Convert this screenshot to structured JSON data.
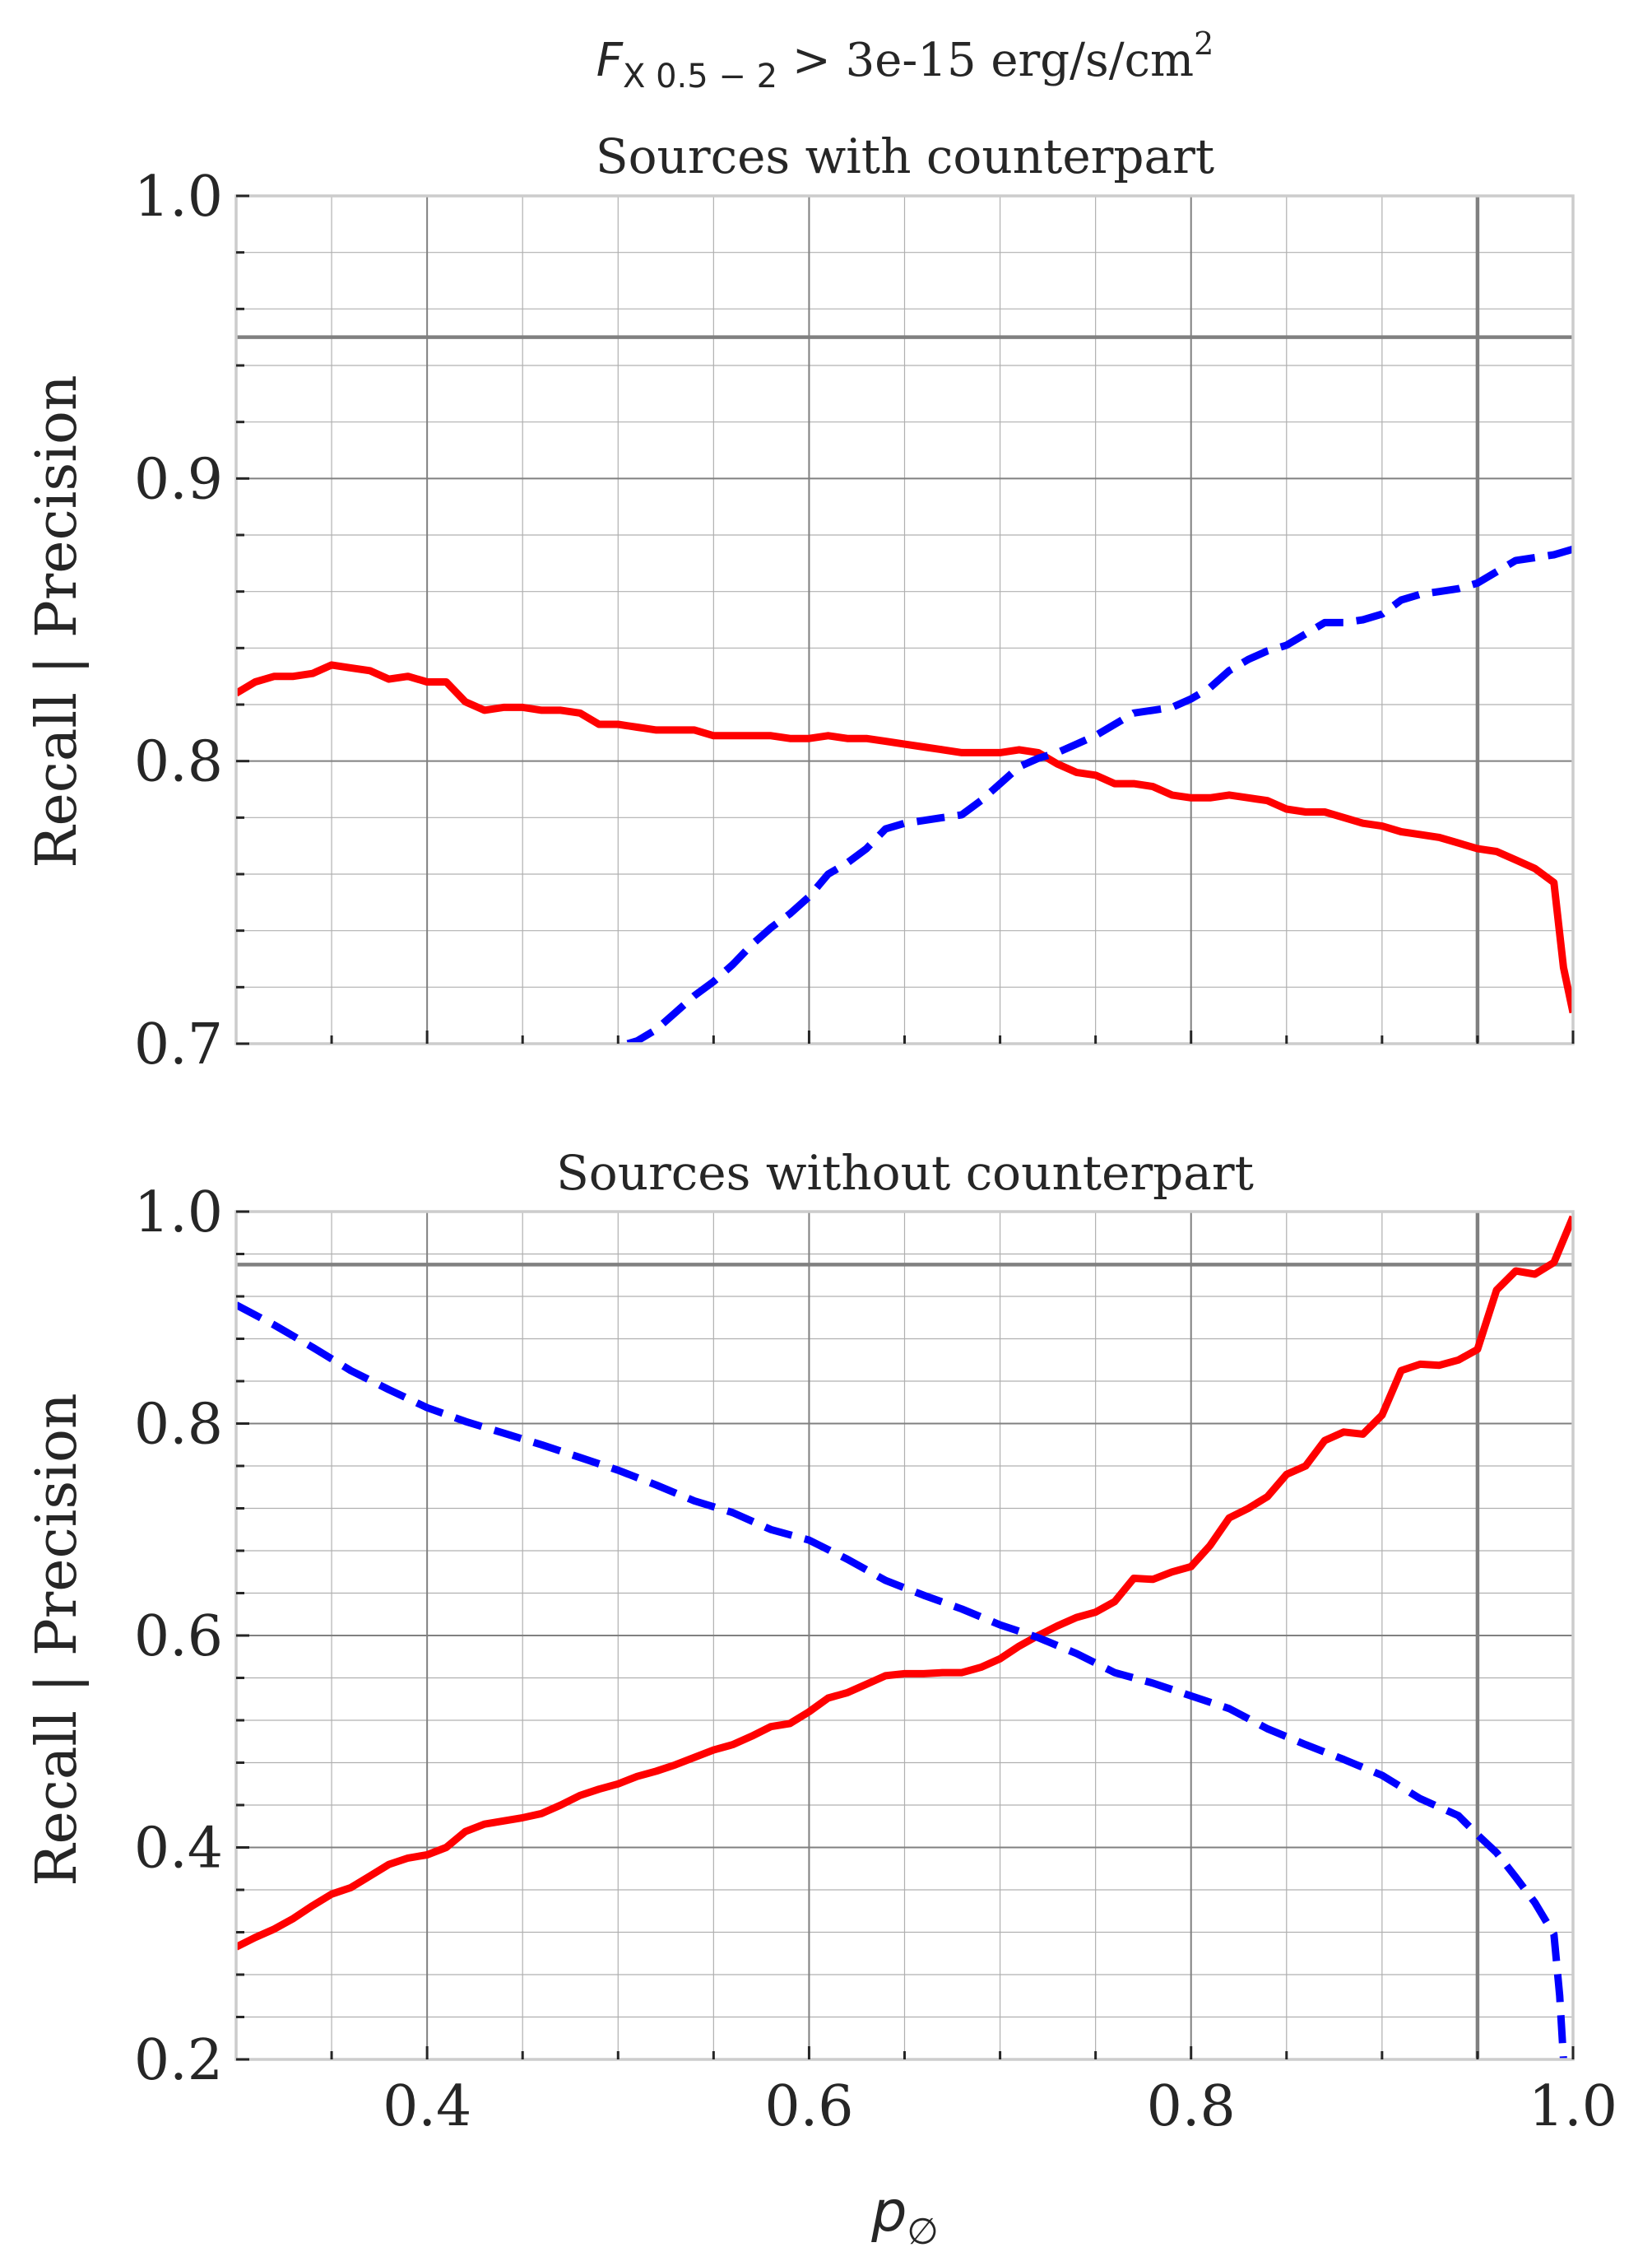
{
  "figure": {
    "suptitle": {
      "base": "F",
      "sub": "X 0.5 − 2",
      "rest": " > 3e-15 erg/s/cm",
      "sup": "2"
    },
    "xlabel": {
      "base": "p",
      "sub": "∅"
    }
  },
  "chart_data": [
    {
      "type": "line",
      "title": "Sources with counterpart",
      "ylabel": "Recall | Precision",
      "xlabel": "",
      "xlim": [
        0.3,
        1.0
      ],
      "ylim": [
        0.7,
        1.0
      ],
      "xticks": [
        "0.4",
        "0.6",
        "0.8",
        "1.0"
      ],
      "show_xtick_labels": false,
      "yticks": [
        "0.7",
        "0.8",
        "0.9",
        "1.0"
      ],
      "ytick_values": [
        0.7,
        0.8,
        0.9,
        1.0
      ],
      "grid": true,
      "reference_lines": {
        "horizontal": 0.95,
        "vertical": 0.95,
        "color": "#808080"
      },
      "series": [
        {
          "color": "#ff0000",
          "style": "solid",
          "x": [
            0.3,
            0.31,
            0.32,
            0.33,
            0.34,
            0.35,
            0.36,
            0.37,
            0.38,
            0.39,
            0.4,
            0.41,
            0.42,
            0.43,
            0.44,
            0.45,
            0.46,
            0.47,
            0.48,
            0.49,
            0.5,
            0.51,
            0.52,
            0.53,
            0.54,
            0.55,
            0.56,
            0.57,
            0.58,
            0.59,
            0.6,
            0.61,
            0.62,
            0.63,
            0.64,
            0.65,
            0.66,
            0.67,
            0.68,
            0.69,
            0.7,
            0.71,
            0.72,
            0.73,
            0.74,
            0.75,
            0.76,
            0.77,
            0.78,
            0.79,
            0.8,
            0.81,
            0.82,
            0.83,
            0.84,
            0.85,
            0.86,
            0.87,
            0.88,
            0.89,
            0.9,
            0.91,
            0.92,
            0.93,
            0.94,
            0.95,
            0.96,
            0.97,
            0.98,
            0.99,
            0.995,
            1.0
          ],
          "y": [
            0.824,
            0.828,
            0.83,
            0.83,
            0.831,
            0.834,
            0.833,
            0.832,
            0.829,
            0.83,
            0.828,
            0.828,
            0.821,
            0.818,
            0.819,
            0.819,
            0.818,
            0.818,
            0.817,
            0.813,
            0.813,
            0.812,
            0.811,
            0.811,
            0.811,
            0.809,
            0.809,
            0.809,
            0.809,
            0.808,
            0.808,
            0.809,
            0.808,
            0.808,
            0.807,
            0.806,
            0.805,
            0.804,
            0.803,
            0.803,
            0.803,
            0.804,
            0.803,
            0.799,
            0.796,
            0.795,
            0.792,
            0.792,
            0.791,
            0.788,
            0.787,
            0.787,
            0.788,
            0.787,
            0.786,
            0.783,
            0.782,
            0.782,
            0.78,
            0.778,
            0.777,
            0.775,
            0.774,
            0.773,
            0.771,
            0.769,
            0.768,
            0.765,
            0.762,
            0.757,
            0.727,
            0.711
          ]
        },
        {
          "color": "#0000ff",
          "style": "dashed",
          "x": [
            0.505,
            0.51,
            0.52,
            0.53,
            0.54,
            0.55,
            0.56,
            0.57,
            0.58,
            0.59,
            0.6,
            0.61,
            0.62,
            0.63,
            0.64,
            0.65,
            0.66,
            0.67,
            0.68,
            0.69,
            0.7,
            0.71,
            0.72,
            0.73,
            0.74,
            0.75,
            0.76,
            0.77,
            0.78,
            0.79,
            0.8,
            0.81,
            0.82,
            0.83,
            0.84,
            0.85,
            0.86,
            0.87,
            0.88,
            0.89,
            0.9,
            0.91,
            0.92,
            0.93,
            0.94,
            0.95,
            0.96,
            0.97,
            0.98,
            0.99,
            1.0
          ],
          "y": [
            0.7,
            0.701,
            0.705,
            0.711,
            0.717,
            0.722,
            0.728,
            0.735,
            0.741,
            0.746,
            0.752,
            0.76,
            0.764,
            0.769,
            0.776,
            0.778,
            0.779,
            0.78,
            0.781,
            0.786,
            0.792,
            0.798,
            0.801,
            0.803,
            0.806,
            0.809,
            0.813,
            0.817,
            0.818,
            0.819,
            0.822,
            0.826,
            0.832,
            0.836,
            0.839,
            0.841,
            0.845,
            0.849,
            0.849,
            0.85,
            0.852,
            0.857,
            0.859,
            0.86,
            0.861,
            0.863,
            0.867,
            0.871,
            0.872,
            0.873,
            0.875
          ]
        }
      ]
    },
    {
      "type": "line",
      "title": "Sources without counterpart",
      "ylabel": "Recall | Precision",
      "xlabel": "",
      "xlim": [
        0.3,
        1.0
      ],
      "ylim": [
        0.2,
        1.0
      ],
      "xticks": [
        "0.4",
        "0.6",
        "0.8",
        "1.0"
      ],
      "show_xtick_labels": true,
      "yticks": [
        "0.2",
        "0.4",
        "0.6",
        "0.8",
        "1.0"
      ],
      "ytick_values": [
        0.2,
        0.4,
        0.6,
        0.8,
        1.0
      ],
      "grid": true,
      "reference_lines": {
        "horizontal": 0.95,
        "vertical": 0.95,
        "color": "#808080"
      },
      "series": [
        {
          "color": "#ff0000",
          "style": "solid",
          "x": [
            0.3,
            0.31,
            0.32,
            0.33,
            0.34,
            0.35,
            0.36,
            0.37,
            0.38,
            0.39,
            0.4,
            0.41,
            0.42,
            0.43,
            0.44,
            0.45,
            0.46,
            0.47,
            0.48,
            0.49,
            0.5,
            0.51,
            0.52,
            0.53,
            0.54,
            0.55,
            0.56,
            0.57,
            0.58,
            0.59,
            0.6,
            0.61,
            0.62,
            0.63,
            0.64,
            0.65,
            0.66,
            0.67,
            0.68,
            0.69,
            0.7,
            0.71,
            0.72,
            0.73,
            0.74,
            0.75,
            0.76,
            0.77,
            0.78,
            0.79,
            0.8,
            0.81,
            0.82,
            0.83,
            0.84,
            0.85,
            0.86,
            0.87,
            0.88,
            0.89,
            0.9,
            0.91,
            0.92,
            0.93,
            0.94,
            0.95,
            0.96,
            0.97,
            0.98,
            0.99,
            1.0
          ],
          "y": [
            0.306,
            0.315,
            0.323,
            0.333,
            0.345,
            0.356,
            0.362,
            0.373,
            0.384,
            0.39,
            0.393,
            0.4,
            0.415,
            0.422,
            0.425,
            0.428,
            0.432,
            0.44,
            0.449,
            0.455,
            0.46,
            0.467,
            0.472,
            0.478,
            0.485,
            0.492,
            0.497,
            0.505,
            0.514,
            0.517,
            0.528,
            0.541,
            0.546,
            0.554,
            0.562,
            0.564,
            0.564,
            0.565,
            0.565,
            0.57,
            0.578,
            0.59,
            0.6,
            0.609,
            0.617,
            0.622,
            0.632,
            0.654,
            0.653,
            0.66,
            0.665,
            0.685,
            0.711,
            0.72,
            0.731,
            0.752,
            0.76,
            0.784,
            0.792,
            0.79,
            0.808,
            0.85,
            0.856,
            0.855,
            0.86,
            0.87,
            0.926,
            0.944,
            0.941,
            0.952,
            0.995
          ]
        },
        {
          "color": "#0000ff",
          "style": "dashed",
          "x": [
            0.3,
            0.32,
            0.34,
            0.36,
            0.38,
            0.4,
            0.42,
            0.44,
            0.46,
            0.48,
            0.5,
            0.52,
            0.54,
            0.56,
            0.58,
            0.6,
            0.62,
            0.64,
            0.66,
            0.68,
            0.7,
            0.72,
            0.74,
            0.76,
            0.78,
            0.8,
            0.82,
            0.84,
            0.86,
            0.88,
            0.9,
            0.92,
            0.94,
            0.95,
            0.96,
            0.97,
            0.98,
            0.99,
            0.993,
            0.995
          ],
          "y": [
            0.912,
            0.893,
            0.872,
            0.85,
            0.832,
            0.815,
            0.802,
            0.791,
            0.78,
            0.768,
            0.756,
            0.742,
            0.727,
            0.716,
            0.7,
            0.69,
            0.672,
            0.652,
            0.638,
            0.625,
            0.61,
            0.598,
            0.583,
            0.565,
            0.555,
            0.543,
            0.531,
            0.512,
            0.497,
            0.483,
            0.468,
            0.446,
            0.43,
            0.412,
            0.395,
            0.372,
            0.348,
            0.318,
            0.26,
            0.2
          ]
        }
      ]
    }
  ]
}
